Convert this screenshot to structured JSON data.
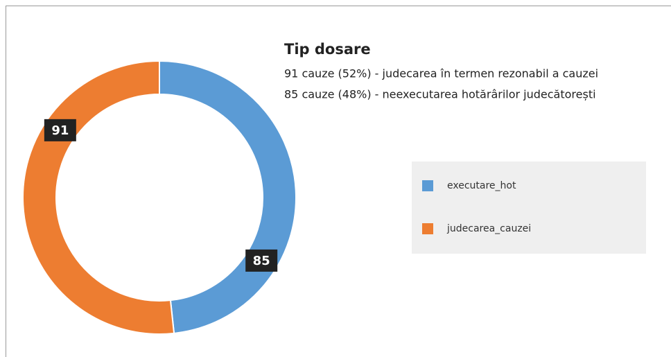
{
  "chart_data": {
    "type": "pie",
    "donut": true,
    "title": "Tip dosare",
    "annotations": [
      "91 cauze (52%) - judecarea în termen rezonabil a cauzei",
      "85 cauze (48%) - neexecutarea hotărârilor judecătorești"
    ],
    "categories": [
      "executare_hot",
      "judecarea_cauzei"
    ],
    "values": [
      85,
      91
    ],
    "colors": [
      "#5b9bd5",
      "#ed7d31"
    ],
    "legend": "right"
  }
}
